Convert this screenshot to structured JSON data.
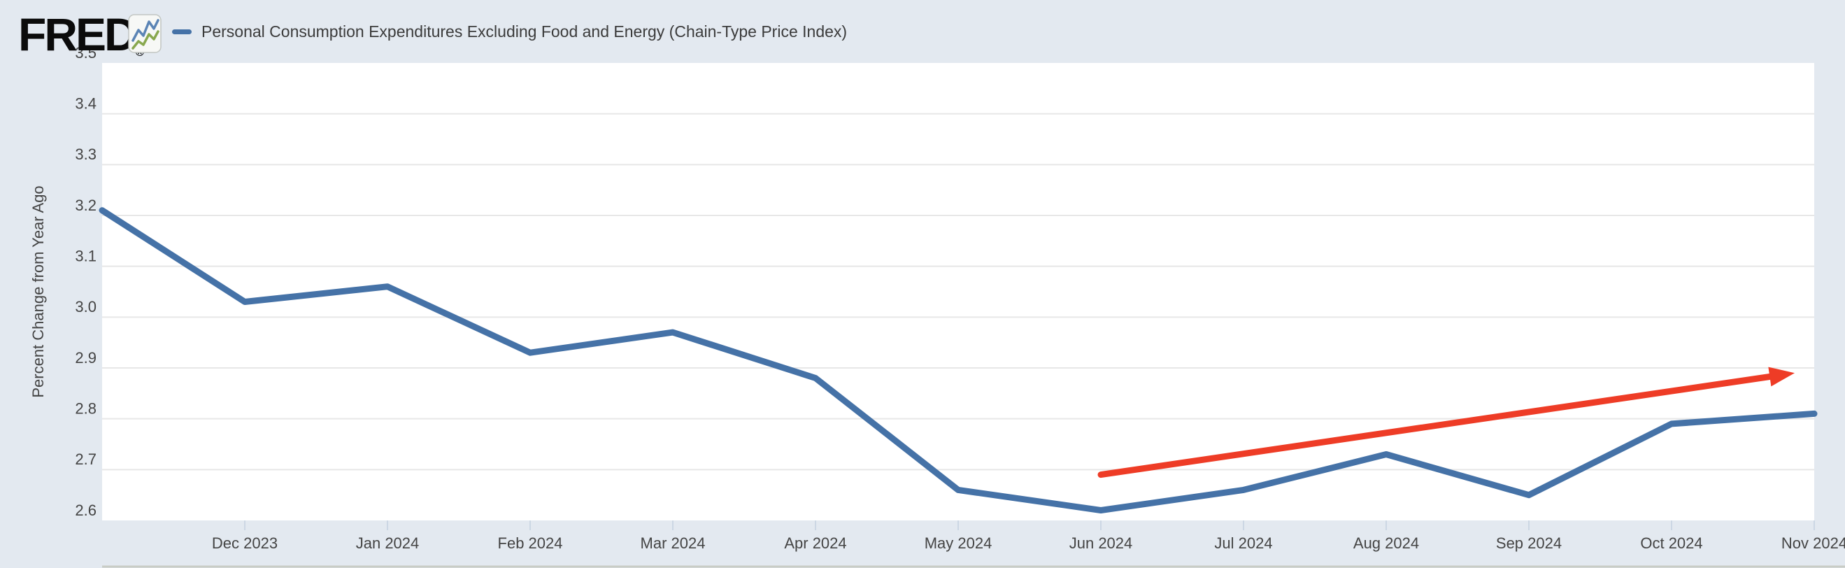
{
  "header": {
    "logo_text": "FRED",
    "logo_registered": "®",
    "legend": {
      "swatch_color": "#4572a7",
      "label": "Personal Consumption Expenditures Excluding Food and Energy (Chain-Type Price Index)"
    }
  },
  "chart_data": {
    "type": "line",
    "title": "",
    "xlabel": "",
    "ylabel": "Percent Change from Year Ago",
    "ylim": [
      2.6,
      3.5
    ],
    "yticks": [
      3.5,
      3.4,
      3.3,
      3.2,
      3.1,
      3.0,
      2.9,
      2.8,
      2.7,
      2.6
    ],
    "grid": true,
    "legend_position": "top",
    "x_tick_labels": [
      "Dec 2023",
      "Jan 2024",
      "Feb 2024",
      "Mar 2024",
      "Apr 2024",
      "May 2024",
      "Jun 2024",
      "Jul 2024",
      "Aug 2024",
      "Sep 2024",
      "Oct 2024",
      "Nov 2024"
    ],
    "series": [
      {
        "name": "Personal Consumption Expenditures Excluding Food and Energy (Chain-Type Price Index)",
        "color": "#4572a7",
        "x": [
          "Nov 2023",
          "Dec 2023",
          "Jan 2024",
          "Feb 2024",
          "Mar 2024",
          "Apr 2024",
          "May 2024",
          "Jun 2024",
          "Jul 2024",
          "Aug 2024",
          "Sep 2024",
          "Oct 2024",
          "Nov 2024"
        ],
        "values": [
          3.21,
          3.03,
          3.06,
          2.93,
          2.97,
          2.88,
          2.66,
          2.62,
          2.66,
          2.73,
          2.65,
          2.79,
          2.81
        ]
      }
    ],
    "annotation": {
      "type": "arrow",
      "color": "#ee3c26",
      "from": {
        "x": "Jun 2024",
        "value": 2.69
      },
      "to": {
        "x": "Nov 2024",
        "value": 2.89
      }
    },
    "colors": {
      "background": "#e3e9f0",
      "plot_background": "#ffffff",
      "gridline": "#e7e7e7",
      "tick_mark": "#ccd7e4",
      "axis_text": "#444444",
      "bottom_divider": "#c9ccc5"
    }
  }
}
